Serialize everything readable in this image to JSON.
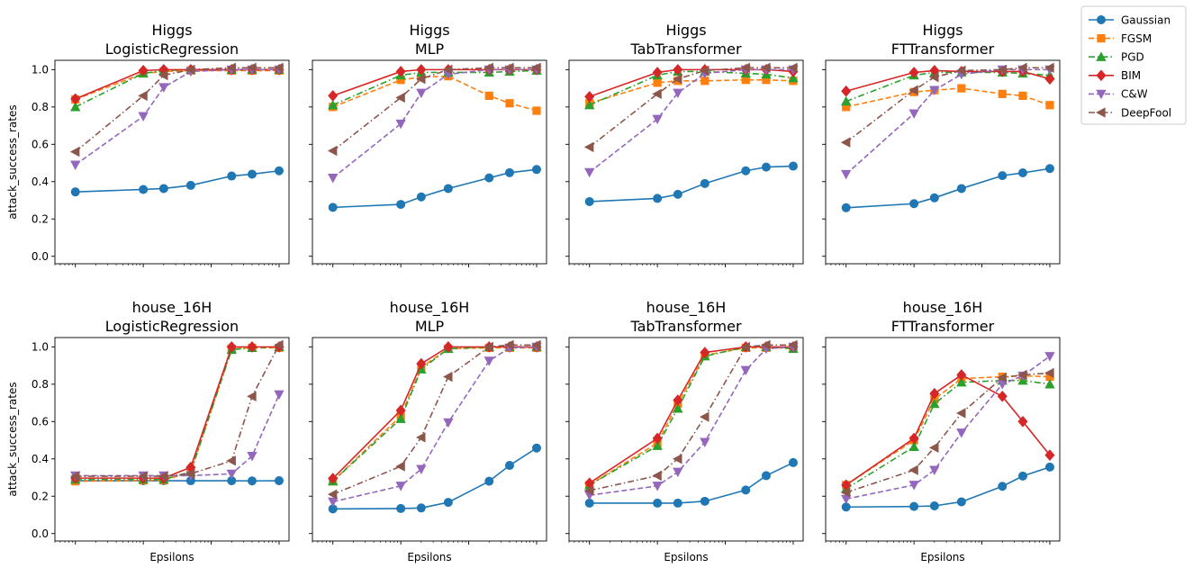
{
  "figure": {
    "legend": [
      {
        "name": "Gaussian",
        "color": "#1f77b4",
        "marker": "circle",
        "dash": "solid"
      },
      {
        "name": "FGSM",
        "color": "#ff7f0e",
        "marker": "square",
        "dash": "dashed"
      },
      {
        "name": "PGD",
        "color": "#2ca02c",
        "marker": "triangle-up",
        "dash": "dashdot"
      },
      {
        "name": "BIM",
        "color": "#d62728",
        "marker": "diamond",
        "dash": "solid"
      },
      {
        "name": "C&W",
        "color": "#9467bd",
        "marker": "triangle-down",
        "dash": "dashed"
      },
      {
        "name": "DeepFool",
        "color": "#8c564b",
        "marker": "triangle-left",
        "dash": "dashdot"
      }
    ]
  },
  "chart_data": [
    {
      "type": "line",
      "title": [
        "Higgs",
        "LogisticRegression"
      ],
      "ylabel": "attack_success_rates",
      "xlabel": "",
      "xscale": "log",
      "xlim": [
        0.0005,
        1.4
      ],
      "ylim": [
        -0.04,
        1.05
      ],
      "yticks": [
        "0.0",
        "0.2",
        "0.4",
        "0.6",
        "0.8",
        "1.0"
      ],
      "x": [
        0.001,
        0.01,
        0.02,
        0.05,
        0.2,
        0.4,
        1
      ],
      "series": [
        {
          "name": "Gaussian",
          "values": [
            0.345,
            0.358,
            0.363,
            0.38,
            0.43,
            0.44,
            0.458
          ]
        },
        {
          "name": "FGSM",
          "values": [
            0.84,
            0.98,
            0.99,
            0.995,
            0.995,
            0.995,
            0.995
          ]
        },
        {
          "name": "PGD",
          "values": [
            0.8,
            0.98,
            0.995,
            1.0,
            1.0,
            1.0,
            1.0
          ]
        },
        {
          "name": "BIM",
          "values": [
            0.843,
            0.995,
            1.0,
            1.0,
            1.0,
            1.0,
            1.0
          ]
        },
        {
          "name": "C&W",
          "values": [
            0.49,
            0.75,
            0.905,
            0.99,
            1.0,
            1.0,
            1.0
          ]
        },
        {
          "name": "DeepFool",
          "values": [
            0.56,
            0.86,
            0.97,
            1.0,
            1.01,
            1.01,
            1.01
          ]
        }
      ]
    },
    {
      "type": "line",
      "title": [
        "Higgs",
        "MLP"
      ],
      "ylabel": "",
      "xlabel": "",
      "xscale": "log",
      "xlim": [
        0.0005,
        1.4
      ],
      "ylim": [
        -0.04,
        1.05
      ],
      "yticks": [],
      "x": [
        0.001,
        0.01,
        0.02,
        0.05,
        0.2,
        0.4,
        1
      ],
      "series": [
        {
          "name": "Gaussian",
          "values": [
            0.262,
            0.278,
            0.318,
            0.363,
            0.42,
            0.448,
            0.465
          ]
        },
        {
          "name": "FGSM",
          "values": [
            0.8,
            0.945,
            0.96,
            0.965,
            0.86,
            0.82,
            0.78
          ]
        },
        {
          "name": "PGD",
          "values": [
            0.81,
            0.97,
            0.985,
            0.985,
            0.985,
            0.99,
            0.995
          ]
        },
        {
          "name": "BIM",
          "values": [
            0.86,
            0.99,
            1.0,
            1.0,
            1.0,
            1.0,
            1.0
          ]
        },
        {
          "name": "C&W",
          "values": [
            0.42,
            0.71,
            0.875,
            0.975,
            1.0,
            1.0,
            1.0
          ]
        },
        {
          "name": "DeepFool",
          "values": [
            0.565,
            0.85,
            0.95,
            1.0,
            1.01,
            1.01,
            1.01
          ]
        }
      ]
    },
    {
      "type": "line",
      "title": [
        "Higgs",
        "TabTransformer"
      ],
      "ylabel": "",
      "xlabel": "",
      "xscale": "log",
      "xlim": [
        0.0005,
        1.4
      ],
      "ylim": [
        -0.04,
        1.05
      ],
      "yticks": [],
      "x": [
        0.001,
        0.01,
        0.02,
        0.05,
        0.2,
        0.4,
        1
      ],
      "series": [
        {
          "name": "Gaussian",
          "values": [
            0.293,
            0.31,
            0.332,
            0.39,
            0.458,
            0.478,
            0.483
          ]
        },
        {
          "name": "FGSM",
          "values": [
            0.82,
            0.93,
            0.94,
            0.94,
            0.945,
            0.945,
            0.94
          ]
        },
        {
          "name": "PGD",
          "values": [
            0.81,
            0.97,
            0.99,
            0.99,
            0.98,
            0.975,
            0.955
          ]
        },
        {
          "name": "BIM",
          "values": [
            0.855,
            0.985,
            1.0,
            1.0,
            1.0,
            1.0,
            0.99
          ]
        },
        {
          "name": "C&W",
          "values": [
            0.45,
            0.735,
            0.875,
            0.98,
            1.0,
            1.0,
            1.0
          ]
        },
        {
          "name": "DeepFool",
          "values": [
            0.585,
            0.87,
            0.95,
            0.995,
            1.01,
            1.01,
            1.01
          ]
        }
      ]
    },
    {
      "type": "line",
      "title": [
        "Higgs",
        "FTTransformer"
      ],
      "ylabel": "",
      "xlabel": "",
      "xscale": "log",
      "xlim": [
        0.0005,
        1.4
      ],
      "ylim": [
        -0.04,
        1.05
      ],
      "yticks": [],
      "x": [
        0.001,
        0.01,
        0.02,
        0.05,
        0.2,
        0.4,
        1
      ],
      "series": [
        {
          "name": "Gaussian",
          "values": [
            0.26,
            0.282,
            0.313,
            0.363,
            0.432,
            0.447,
            0.47
          ]
        },
        {
          "name": "FGSM",
          "values": [
            0.8,
            0.88,
            0.89,
            0.9,
            0.87,
            0.86,
            0.81
          ]
        },
        {
          "name": "PGD",
          "values": [
            0.83,
            0.97,
            0.985,
            0.985,
            0.985,
            0.98,
            0.97
          ]
        },
        {
          "name": "BIM",
          "values": [
            0.885,
            0.985,
            0.995,
            0.99,
            0.99,
            0.99,
            0.95
          ]
        },
        {
          "name": "C&W",
          "values": [
            0.44,
            0.765,
            0.89,
            0.975,
            1.0,
            1.0,
            1.0
          ]
        },
        {
          "name": "DeepFool",
          "values": [
            0.61,
            0.89,
            0.96,
            0.995,
            1.0,
            1.01,
            1.01
          ]
        }
      ]
    },
    {
      "type": "line",
      "title": [
        "house_16H",
        "LogisticRegression"
      ],
      "ylabel": "attack_success_rates",
      "xlabel": "Epsilons",
      "xscale": "log",
      "xlim": [
        0.0005,
        1.4
      ],
      "ylim": [
        -0.04,
        1.05
      ],
      "yticks": [
        "0.0",
        "0.2",
        "0.4",
        "0.6",
        "0.8",
        "1.0"
      ],
      "x": [
        0.001,
        0.01,
        0.02,
        0.05,
        0.2,
        0.4,
        1
      ],
      "series": [
        {
          "name": "Gaussian",
          "values": [
            0.283,
            0.283,
            0.283,
            0.283,
            0.283,
            0.282,
            0.283
          ]
        },
        {
          "name": "FGSM",
          "values": [
            0.28,
            0.285,
            0.285,
            0.33,
            0.99,
            0.995,
            0.995
          ]
        },
        {
          "name": "PGD",
          "values": [
            0.29,
            0.29,
            0.29,
            0.33,
            0.985,
            0.995,
            1.0
          ]
        },
        {
          "name": "BIM",
          "values": [
            0.297,
            0.297,
            0.297,
            0.355,
            1.0,
            1.0,
            1.0
          ]
        },
        {
          "name": "C&W",
          "values": [
            0.31,
            0.31,
            0.31,
            0.31,
            0.32,
            0.415,
            0.745
          ]
        },
        {
          "name": "DeepFool",
          "values": [
            0.307,
            0.307,
            0.307,
            0.32,
            0.39,
            0.735,
            1.01
          ]
        }
      ]
    },
    {
      "type": "line",
      "title": [
        "house_16H",
        "MLP"
      ],
      "ylabel": "",
      "xlabel": "Epsilons",
      "xscale": "log",
      "xlim": [
        0.0005,
        1.4
      ],
      "ylim": [
        -0.04,
        1.05
      ],
      "yticks": [],
      "x": [
        0.001,
        0.01,
        0.02,
        0.05,
        0.2,
        0.4,
        1
      ],
      "series": [
        {
          "name": "Gaussian",
          "values": [
            0.132,
            0.134,
            0.137,
            0.167,
            0.28,
            0.365,
            0.458
          ]
        },
        {
          "name": "FGSM",
          "values": [
            0.28,
            0.63,
            0.89,
            0.99,
            0.995,
            0.995,
            0.995
          ]
        },
        {
          "name": "PGD",
          "values": [
            0.28,
            0.615,
            0.88,
            0.99,
            1.0,
            1.0,
            1.0
          ]
        },
        {
          "name": "BIM",
          "values": [
            0.295,
            0.66,
            0.91,
            1.0,
            1.0,
            1.0,
            1.0
          ]
        },
        {
          "name": "C&W",
          "values": [
            0.17,
            0.255,
            0.345,
            0.595,
            0.925,
            0.995,
            1.0
          ]
        },
        {
          "name": "DeepFool",
          "values": [
            0.21,
            0.36,
            0.515,
            0.84,
            1.0,
            1.01,
            1.01
          ]
        }
      ]
    },
    {
      "type": "line",
      "title": [
        "house_16H",
        "TabTransformer"
      ],
      "ylabel": "",
      "xlabel": "Epsilons",
      "xscale": "log",
      "xlim": [
        0.0005,
        1.4
      ],
      "ylim": [
        -0.04,
        1.05
      ],
      "yticks": [],
      "x": [
        0.001,
        0.01,
        0.02,
        0.05,
        0.2,
        0.4,
        1
      ],
      "series": [
        {
          "name": "Gaussian",
          "values": [
            0.163,
            0.163,
            0.163,
            0.173,
            0.233,
            0.31,
            0.38
          ]
        },
        {
          "name": "FGSM",
          "values": [
            0.26,
            0.485,
            0.695,
            0.955,
            0.995,
            0.995,
            0.995
          ]
        },
        {
          "name": "PGD",
          "values": [
            0.26,
            0.47,
            0.67,
            0.95,
            1.0,
            1.0,
            0.99
          ]
        },
        {
          "name": "BIM",
          "values": [
            0.27,
            0.51,
            0.715,
            0.97,
            1.0,
            1.0,
            1.0
          ]
        },
        {
          "name": "C&W",
          "values": [
            0.205,
            0.255,
            0.33,
            0.49,
            0.875,
            0.99,
            1.0
          ]
        },
        {
          "name": "DeepFool",
          "values": [
            0.23,
            0.31,
            0.4,
            0.625,
            1.0,
            1.01,
            1.01
          ]
        }
      ]
    },
    {
      "type": "line",
      "title": [
        "house_16H",
        "FTTransformer"
      ],
      "ylabel": "",
      "xlabel": "Epsilons",
      "xscale": "log",
      "xlim": [
        0.0005,
        1.4
      ],
      "ylim": [
        -0.04,
        1.05
      ],
      "yticks": [],
      "x": [
        0.001,
        0.01,
        0.02,
        0.05,
        0.2,
        0.4,
        1
      ],
      "series": [
        {
          "name": "Gaussian",
          "values": [
            0.142,
            0.145,
            0.148,
            0.17,
            0.253,
            0.308,
            0.356
          ]
        },
        {
          "name": "FGSM",
          "values": [
            0.26,
            0.5,
            0.72,
            0.83,
            0.84,
            0.845,
            0.84
          ]
        },
        {
          "name": "PGD",
          "values": [
            0.24,
            0.465,
            0.695,
            0.81,
            0.82,
            0.82,
            0.8
          ]
        },
        {
          "name": "BIM",
          "values": [
            0.26,
            0.51,
            0.75,
            0.85,
            0.735,
            0.6,
            0.42
          ]
        },
        {
          "name": "C&W",
          "values": [
            0.185,
            0.26,
            0.34,
            0.54,
            0.8,
            0.845,
            0.95
          ]
        },
        {
          "name": "DeepFool",
          "values": [
            0.22,
            0.34,
            0.46,
            0.645,
            0.835,
            0.85,
            0.86
          ]
        }
      ]
    }
  ]
}
